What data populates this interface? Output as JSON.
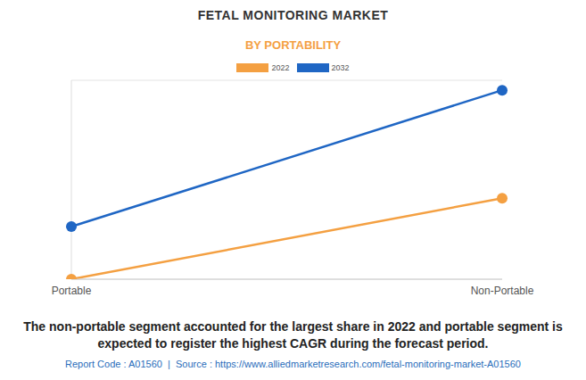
{
  "chart_data": {
    "type": "line",
    "title": "FETAL MONITORING MARKET",
    "subtitle": "BY PORTABILITY",
    "categories": [
      "Portable",
      "Non-Portable"
    ],
    "series": [
      {
        "name": "2022",
        "color": "#f4a042",
        "values": [
          0,
          2.85
        ]
      },
      {
        "name": "2032",
        "color": "#1f66c4",
        "values": [
          1.85,
          6.65
        ]
      }
    ],
    "ylim": [
      0,
      7
    ],
    "yticks": [
      0,
      1,
      2,
      3,
      4,
      5,
      6,
      7
    ],
    "grid": true,
    "tick_labels": "x",
    "marker": "circle",
    "legend": "top",
    "annotations": [
      "The non-portable segment accounted for the largest share in 2022 and portable segment is expected to register the highest CAGR during the forecast period.",
      "Report Code : A01560  |  Source : https://www.alliedmarketresearch.com/fetal-monitoring-market-A01560"
    ]
  }
}
